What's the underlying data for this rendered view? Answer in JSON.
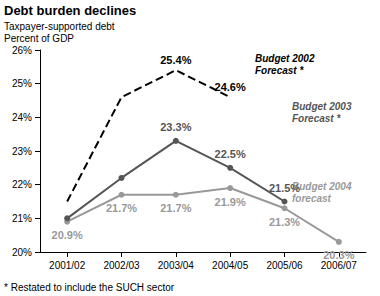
{
  "chart_data": {
    "type": "line",
    "title": "Debt burden declines",
    "subtitle": "Taxpayer-supported debt",
    "ylabel": "Percent of GDP",
    "footnote": "* Restated to include the SUCH sector",
    "categories": [
      "2001/02",
      "2002/03",
      "2003/04",
      "2004/05",
      "2005/06",
      "2006/07"
    ],
    "series": [
      {
        "name": "Budget 2002\nForecast *",
        "color": "#000000",
        "line_style": "dashed",
        "marker": "none",
        "values": [
          21.5,
          24.6,
          25.4,
          24.6,
          null,
          null
        ],
        "value_labels": [
          null,
          null,
          "25.4%",
          "24.6%",
          null,
          null
        ]
      },
      {
        "name": "Budget 2003\nForecast *",
        "color": "#555555",
        "line_style": "solid",
        "marker": "circle",
        "values": [
          21.0,
          22.2,
          23.3,
          22.5,
          21.5,
          null
        ],
        "value_labels": [
          null,
          null,
          "23.3%",
          "22.5%",
          "21.5%",
          null
        ]
      },
      {
        "name": "Budget 2004\nforecast",
        "color": "#999999",
        "line_style": "solid",
        "marker": "circle",
        "values": [
          20.9,
          21.7,
          21.7,
          21.9,
          21.3,
          20.3
        ],
        "value_labels": [
          "20.9%",
          "21.7%",
          "21.7%",
          "21.9%",
          "21.3%",
          "20.3%"
        ]
      }
    ],
    "ylim": [
      20,
      26
    ],
    "yticks": [
      {
        "value": 20,
        "label": "20%"
      },
      {
        "value": 21,
        "label": "21%"
      },
      {
        "value": 22,
        "label": "22%"
      },
      {
        "value": 23,
        "label": "23%"
      },
      {
        "value": 24,
        "label": "24%"
      },
      {
        "value": 25,
        "label": "25%"
      },
      {
        "value": 26,
        "label": "26%"
      }
    ],
    "grid": false,
    "data_labels": true
  }
}
